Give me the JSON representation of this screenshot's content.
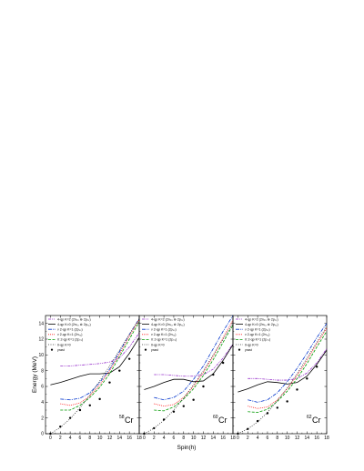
{
  "chart_data": {
    "type": "line",
    "xlabel": "Spin(h)",
    "ylabel": "Energy (MeV)",
    "xlim": [
      -1,
      18
    ],
    "ylim": [
      0,
      15
    ],
    "xticks": [
      "0",
      "2",
      "4",
      "6",
      "8",
      "10",
      "12",
      "14",
      "16",
      "18"
    ],
    "yticks": [
      "0",
      "2",
      "4",
      "6",
      "8",
      "10",
      "12",
      "14"
    ],
    "legend_labels": [
      "4-qp K=2   (2nₚ₂ ⊗ 2p₇₂)",
      "4-qp K=0   (2nₚ₂ ⊗ 2p₇₂)",
      "ν 2-qp K=1  (2p₃₂)",
      "ν 2-qp K=1  (2n₇₂)",
      "π 2-qp K=1  (2p₇₂)",
      "0-qp K=0",
      "yrast"
    ],
    "panels": [
      {
        "nucleus_mass": "58",
        "nucleus_symbol": "Cr",
        "series": [
          {
            "x": [
              2,
              4,
              6,
              8,
              10,
              12,
              14,
              16,
              18
            ],
            "y": [
              8.6,
              8.6,
              8.7,
              8.8,
              8.9,
              9.1,
              9.6,
              11.0,
              12.8
            ]
          },
          {
            "x": [
              0,
              2,
              4,
              6,
              8,
              10,
              12,
              14,
              16,
              18
            ],
            "y": [
              6.2,
              6.5,
              6.9,
              7.3,
              7.6,
              7.6,
              7.7,
              8.5,
              10.2,
              12.2
            ]
          },
          {
            "x": [
              2,
              4,
              6,
              8,
              10,
              12,
              14,
              16,
              18
            ],
            "y": [
              4.4,
              4.3,
              4.5,
              5.2,
              6.5,
              8.2,
              10.4,
              12.6,
              14.6
            ]
          },
          {
            "x": [
              2,
              4,
              6,
              8,
              10,
              12,
              14,
              16,
              18
            ],
            "y": [
              3.8,
              3.6,
              3.9,
              4.8,
              6.2,
              8.0,
              10.1,
              12.4,
              14.5
            ]
          },
          {
            "x": [
              2,
              4,
              6,
              8,
              10,
              12,
              14,
              16,
              18
            ],
            "y": [
              3.0,
              3.0,
              3.6,
              4.6,
              5.9,
              7.6,
              9.8,
              12.0,
              14.2
            ]
          },
          {
            "x": [
              0,
              2,
              4,
              6,
              8,
              10,
              12,
              14,
              16,
              18
            ],
            "y": [
              0,
              0.8,
              1.9,
              3.3,
              4.9,
              6.7,
              8.6,
              10.6,
              12.6,
              14.6
            ]
          },
          {
            "x": [
              0,
              2,
              4,
              6,
              8,
              10,
              12,
              14,
              16
            ],
            "y": [
              0,
              0.9,
              2.0,
              3.0,
              3.6,
              4.4,
              6.5,
              8.0,
              9.5
            ]
          }
        ]
      },
      {
        "nucleus_mass": "60",
        "nucleus_symbol": "Cr",
        "series": [
          {
            "x": [
              2,
              4,
              6,
              8,
              10,
              12,
              14,
              16,
              18
            ],
            "y": [
              7.5,
              7.5,
              7.4,
              7.3,
              7.3,
              7.5,
              8.2,
              9.6,
              11.4
            ]
          },
          {
            "x": [
              0,
              2,
              4,
              6,
              8,
              10,
              12,
              14,
              16,
              18
            ],
            "y": [
              5.6,
              6.0,
              6.5,
              6.9,
              6.9,
              6.6,
              6.7,
              7.6,
              9.3,
              11.3
            ]
          },
          {
            "x": [
              2,
              4,
              6,
              8,
              10,
              12,
              14,
              16,
              18
            ],
            "y": [
              4.6,
              4.3,
              4.6,
              5.4,
              6.9,
              8.6,
              10.8,
              13.0,
              15.0
            ]
          },
          {
            "x": [
              2,
              4,
              6,
              8,
              10,
              12,
              14,
              16,
              18
            ],
            "y": [
              3.8,
              3.5,
              3.7,
              4.6,
              6.0,
              7.8,
              9.8,
              12.2,
              14.4
            ]
          },
          {
            "x": [
              2,
              4,
              6,
              8,
              10,
              12,
              14,
              16,
              18
            ],
            "y": [
              3.0,
              2.9,
              3.4,
              4.4,
              5.7,
              7.4,
              9.4,
              11.6,
              13.8
            ]
          },
          {
            "x": [
              0,
              2,
              4,
              6,
              8,
              10,
              12,
              14,
              16,
              18
            ],
            "y": [
              0,
              0.7,
              1.7,
              3.0,
              4.5,
              6.2,
              8.0,
              10.0,
              12.0,
              14.0
            ]
          },
          {
            "x": [
              0,
              2,
              4,
              6,
              8,
              10,
              12,
              14,
              16
            ],
            "y": [
              0,
              0.7,
              1.8,
              2.8,
              3.5,
              4.3,
              6.0,
              7.5,
              9.0
            ]
          }
        ]
      },
      {
        "nucleus_mass": "62",
        "nucleus_symbol": "Cr",
        "series": [
          {
            "x": [
              2,
              4,
              6,
              8,
              10,
              12,
              14,
              16,
              18
            ],
            "y": [
              7.0,
              7.0,
              6.9,
              6.8,
              6.8,
              7.0,
              7.7,
              9.0,
              10.8
            ]
          },
          {
            "x": [
              0,
              2,
              4,
              6,
              8,
              10,
              12,
              14,
              16,
              18
            ],
            "y": [
              5.3,
              5.7,
              6.2,
              6.6,
              6.5,
              6.3,
              6.5,
              7.3,
              8.8,
              10.6
            ]
          },
          {
            "x": [
              2,
              4,
              6,
              8,
              10,
              12,
              14,
              16,
              18
            ],
            "y": [
              4.3,
              4.0,
              4.3,
              5.2,
              6.6,
              8.3,
              10.2,
              12.2,
              14.0
            ]
          },
          {
            "x": [
              2,
              4,
              6,
              8,
              10,
              12,
              14,
              16,
              18
            ],
            "y": [
              3.5,
              3.2,
              3.4,
              4.3,
              5.7,
              7.4,
              9.3,
              11.4,
              13.4
            ]
          },
          {
            "x": [
              2,
              4,
              6,
              8,
              10,
              12,
              14,
              16,
              18
            ],
            "y": [
              2.8,
              2.7,
              3.1,
              4.1,
              5.4,
              7.0,
              8.9,
              11.0,
              13.0
            ]
          },
          {
            "x": [
              0,
              2,
              4,
              6,
              8,
              10,
              12,
              14,
              16,
              18
            ],
            "y": [
              0,
              0.6,
              1.5,
              2.7,
              4.2,
              5.8,
              7.6,
              9.6,
              11.6,
              13.6
            ]
          },
          {
            "x": [
              0,
              2,
              4,
              6,
              8,
              10,
              12,
              14,
              16
            ],
            "y": [
              0,
              0.6,
              1.6,
              2.6,
              3.3,
              4.1,
              5.6,
              7.0,
              8.5
            ]
          }
        ]
      }
    ],
    "series_styles": [
      {
        "color": "#9933cc",
        "dash": "3 1 1 1 1 1",
        "marker": "none"
      },
      {
        "color": "#000000",
        "dash": "",
        "marker": "none"
      },
      {
        "color": "#0033cc",
        "dash": "4 1.2 1 1.2",
        "marker": "none"
      },
      {
        "color": "#ff2222",
        "dash": "1 1",
        "marker": "none"
      },
      {
        "color": "#009900",
        "dash": "3 1.5",
        "marker": "none"
      },
      {
        "color": "#333333",
        "dash": "1 1.5",
        "marker": "none"
      },
      {
        "color": "#000000",
        "dash": "none",
        "marker": "dot"
      }
    ]
  }
}
